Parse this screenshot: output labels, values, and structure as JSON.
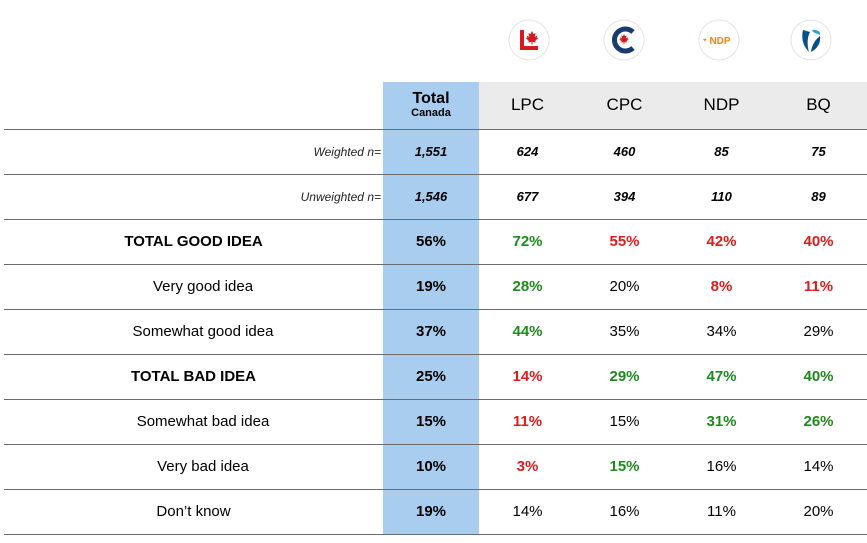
{
  "logos": [
    {
      "party": "LPC",
      "icon": "liberal-maple-leaf-icon",
      "color": "#d71920"
    },
    {
      "party": "CPC",
      "icon": "conservative-c-icon",
      "color": "#1a3b6e"
    },
    {
      "party": "NDP",
      "icon": "ndp-logo-icon",
      "text": "NDP",
      "color": "#f58220"
    },
    {
      "party": "BQ",
      "icon": "bloc-fleur-icon",
      "color": "#0b4d8c"
    }
  ],
  "chart_data": {
    "type": "table",
    "header": {
      "total_label": "Total",
      "total_sublabel": "Canada",
      "columns": [
        "LPC",
        "CPC",
        "NDP",
        "BQ"
      ]
    },
    "rows": [
      {
        "label": "Weighted n=",
        "kind": "base",
        "total": "1,551",
        "values": [
          "624",
          "460",
          "85",
          "75"
        ],
        "flags": [
          "",
          "",
          "",
          ""
        ]
      },
      {
        "label": "Unweighted n=",
        "kind": "base",
        "total": "1,546",
        "values": [
          "677",
          "394",
          "110",
          "89"
        ],
        "flags": [
          "",
          "",
          "",
          ""
        ]
      },
      {
        "label": "TOTAL GOOD IDEA",
        "kind": "net",
        "total": "56%",
        "values": [
          "72%",
          "55%",
          "42%",
          "40%"
        ],
        "flags": [
          "hi",
          "lo",
          "lo",
          "lo"
        ]
      },
      {
        "label": "Very good idea",
        "kind": "sub",
        "total": "19%",
        "values": [
          "28%",
          "20%",
          "8%",
          "11%"
        ],
        "flags": [
          "hi",
          "",
          "lo",
          "lo"
        ]
      },
      {
        "label": "Somewhat good idea",
        "kind": "sub",
        "total": "37%",
        "values": [
          "44%",
          "35%",
          "34%",
          "29%"
        ],
        "flags": [
          "hi",
          "",
          "",
          ""
        ]
      },
      {
        "label": "TOTAL BAD IDEA",
        "kind": "net",
        "total": "25%",
        "values": [
          "14%",
          "29%",
          "47%",
          "40%"
        ],
        "flags": [
          "lo",
          "hi",
          "hi",
          "hi"
        ]
      },
      {
        "label": "Somewhat bad idea",
        "kind": "sub",
        "total": "15%",
        "values": [
          "11%",
          "15%",
          "31%",
          "26%"
        ],
        "flags": [
          "lo",
          "",
          "hi",
          "hi"
        ]
      },
      {
        "label": "Very bad idea",
        "kind": "sub",
        "total": "10%",
        "values": [
          "3%",
          "15%",
          "16%",
          "14%"
        ],
        "flags": [
          "lo",
          "hi",
          "",
          ""
        ]
      },
      {
        "label": "Don’t know",
        "kind": "plain",
        "total": "19%",
        "values": [
          "14%",
          "16%",
          "11%",
          "20%"
        ],
        "flags": [
          "",
          "",
          "",
          ""
        ]
      }
    ],
    "colors": {
      "higher": "#1e8a1e",
      "lower": "#e01b1b",
      "total_column": "#a8cdee",
      "header_bg": "#ebebeb"
    }
  }
}
